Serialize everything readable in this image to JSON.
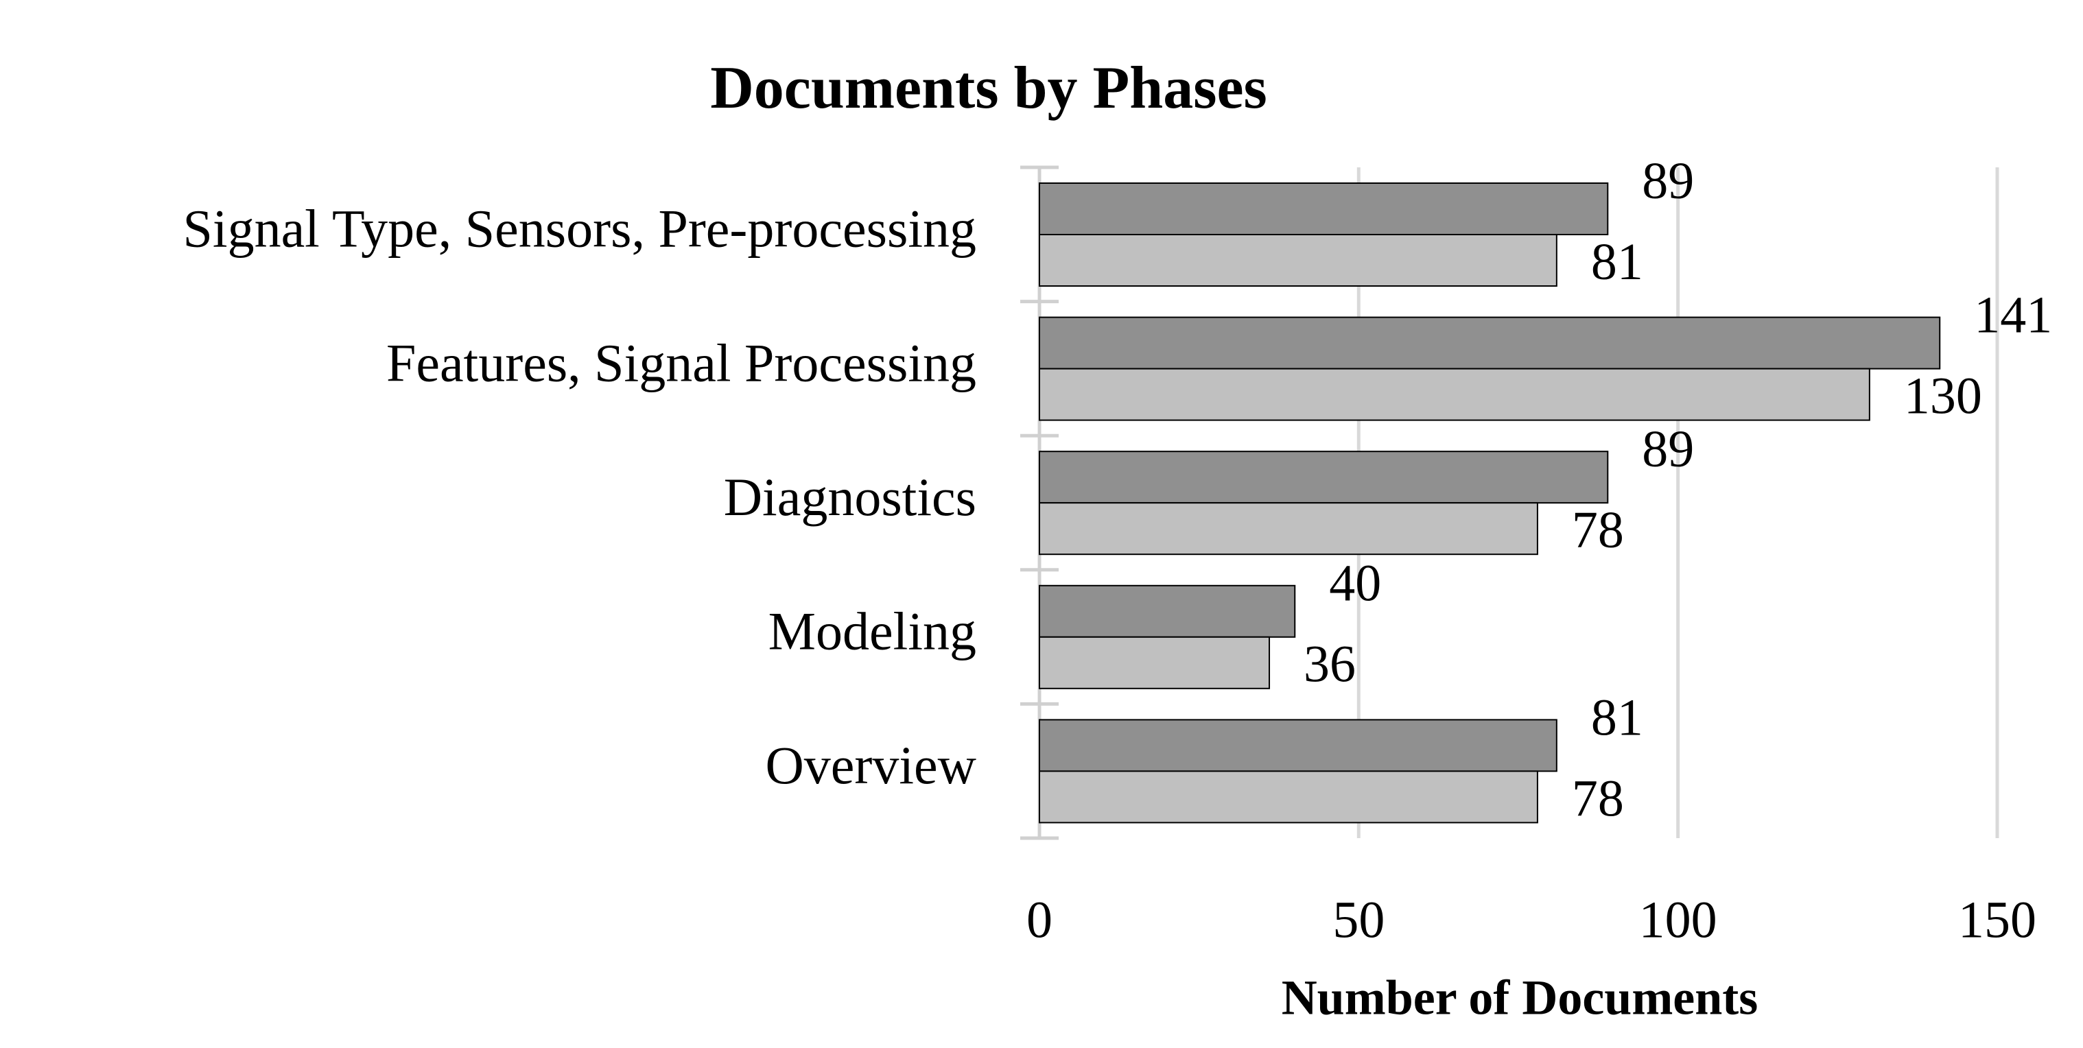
{
  "chart_data": {
    "type": "bar",
    "orientation": "horizontal",
    "title": "Documents by Phases",
    "x_label": "Number of Documents",
    "categories": [
      "Signal Type, Sensors, Pre-processing",
      "Features, Signal Processing",
      "Diagnostics",
      "Modeling",
      "Overview"
    ],
    "series": [
      {
        "color": "#909090",
        "values": [
          89,
          141,
          89,
          40,
          81
        ]
      },
      {
        "color": "#c0c0c0",
        "values": [
          81,
          130,
          78,
          36,
          78
        ]
      }
    ],
    "xlim": [
      0,
      150
    ],
    "xticks": [
      0,
      50,
      100,
      150
    ],
    "grid": true
  }
}
